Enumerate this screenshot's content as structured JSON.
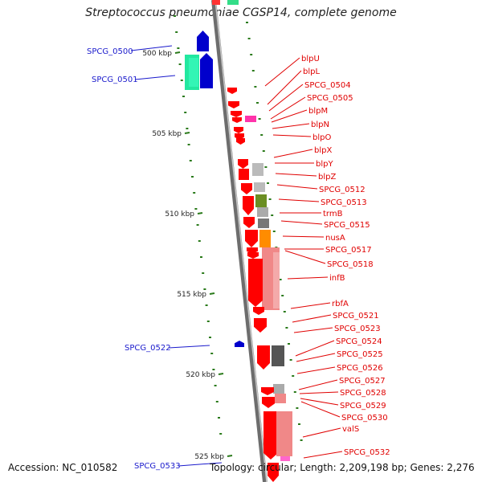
{
  "title": "Streptococcus pneumoniae CGSP14, complete genome",
  "footer": {
    "accession": "Accession: NC_010582",
    "summary": "Topology: circular; Length: 2,209,198 bp; Genes: 2,276"
  },
  "scale_labels": [
    "500 kbp",
    "505 kbp",
    "510 kbp",
    "515 kbp",
    "520 kbp",
    "525 kbp"
  ],
  "colors": {
    "minus_strand_gene": "#0000cc",
    "plus_strand_gene": "#ff0000",
    "backbone": "#888888",
    "tick": "#2a7a1a",
    "label_minus": "#1a1acc",
    "label_plus": "#e00000"
  },
  "genes_left": [
    {
      "id": "SPCG_0500",
      "label": "SPCG_0500"
    },
    {
      "id": "SPCG_0501",
      "label": "SPCG_0501"
    },
    {
      "id": "SPCG_0522",
      "label": "SPCG_0522"
    },
    {
      "id": "SPCG_0533",
      "label": "SPCG_0533"
    }
  ],
  "genes_right": [
    {
      "id": "blpU",
      "label": "blpU"
    },
    {
      "id": "blpL",
      "label": "blpL"
    },
    {
      "id": "SPCG_0504",
      "label": "SPCG_0504"
    },
    {
      "id": "SPCG_0505",
      "label": "SPCG_0505"
    },
    {
      "id": "blpM",
      "label": "blpM"
    },
    {
      "id": "blpN",
      "label": "blpN"
    },
    {
      "id": "blpO",
      "label": "blpO"
    },
    {
      "id": "blpX",
      "label": "blpX"
    },
    {
      "id": "blpY",
      "label": "blpY"
    },
    {
      "id": "blpZ",
      "label": "blpZ"
    },
    {
      "id": "SPCG_0512",
      "label": "SPCG_0512"
    },
    {
      "id": "SPCG_0513",
      "label": "SPCG_0513"
    },
    {
      "id": "trmB",
      "label": "trmB"
    },
    {
      "id": "SPCG_0515",
      "label": "SPCG_0515"
    },
    {
      "id": "nusA",
      "label": "nusA"
    },
    {
      "id": "SPCG_0517",
      "label": "SPCG_0517"
    },
    {
      "id": "SPCG_0518",
      "label": "SPCG_0518"
    },
    {
      "id": "infB",
      "label": "infB"
    },
    {
      "id": "rbfA",
      "label": "rbfA"
    },
    {
      "id": "SPCG_0521",
      "label": "SPCG_0521"
    },
    {
      "id": "SPCG_0523",
      "label": "SPCG_0523"
    },
    {
      "id": "SPCG_0524",
      "label": "SPCG_0524"
    },
    {
      "id": "SPCG_0525",
      "label": "SPCG_0525"
    },
    {
      "id": "SPCG_0526",
      "label": "SPCG_0526"
    },
    {
      "id": "SPCG_0527",
      "label": "SPCG_0527"
    },
    {
      "id": "SPCG_0528",
      "label": "SPCG_0528"
    },
    {
      "id": "SPCG_0529",
      "label": "SPCG_0529"
    },
    {
      "id": "SPCG_0530",
      "label": "SPCG_0530"
    },
    {
      "id": "valS",
      "label": "valS"
    },
    {
      "id": "SPCG_0532",
      "label": "SPCG_0532"
    }
  ]
}
